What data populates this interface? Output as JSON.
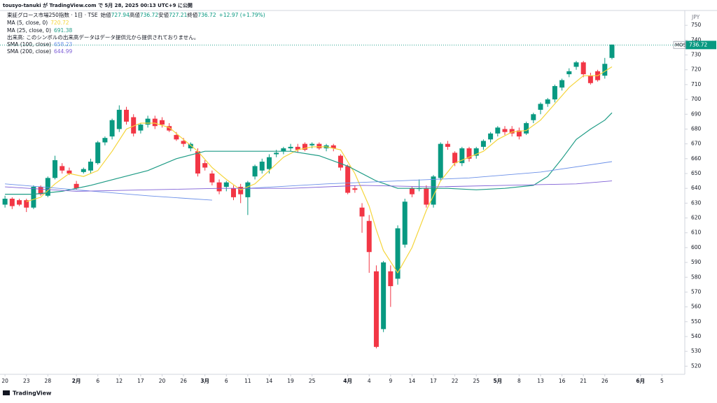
{
  "chart_data": {
    "type": "candlestick",
    "published": "tousyo-tanuki が TradingView.com で 5月 28, 2025 00:13 UTC+9 に公開",
    "legend": {
      "symbol": "東証グロース市場250指数 · 1日 · TSE",
      "open_label": "始値",
      "open": 727.94,
      "high_label": "高値",
      "high": 736.72,
      "low_label": "安値",
      "low": 727.21,
      "close_label": "終値",
      "close": 736.72,
      "change": "+12.97 (+1.79%)"
    },
    "volume_note": "出来高: このシンボルの出来高データはデータ提供元から提供されておりません。",
    "currency": "JPY",
    "price_label": {
      "symbol": "MOS",
      "value": 736.72
    },
    "brand": "TradingView",
    "up_color": "#089981",
    "down_color": "#f23645",
    "open": [
      629,
      633,
      632,
      632,
      627,
      641,
      635,
      647,
      655,
      652,
      643,
      651,
      652,
      657,
      671,
      675,
      680,
      693,
      688,
      679,
      683,
      687,
      686,
      682,
      676,
      672,
      667,
      665,
      657,
      650,
      644,
      641,
      640,
      641,
      634,
      648,
      652,
      653,
      663,
      665,
      667,
      668,
      670,
      669,
      670,
      667,
      669,
      662,
      655,
      640,
      627,
      618,
      584,
      545,
      584,
      579,
      602,
      640,
      640,
      640,
      629,
      647,
      670,
      664,
      657,
      667,
      662,
      668,
      673,
      677,
      680,
      680,
      679,
      677,
      686,
      693,
      697,
      700,
      708,
      717,
      722,
      725,
      716,
      719,
      716,
      728
    ],
    "high": [
      635,
      634,
      633,
      633,
      642,
      642,
      648,
      662,
      657,
      654,
      645,
      654,
      660,
      672,
      675,
      687,
      696,
      695,
      690,
      684,
      689,
      689,
      688,
      684,
      678,
      674,
      671,
      667,
      659,
      652,
      646,
      645,
      642,
      643,
      645,
      656,
      660,
      663,
      666,
      668,
      670,
      670,
      671,
      671,
      671,
      670,
      670,
      663,
      656,
      642,
      630,
      622,
      588,
      591,
      588,
      615,
      633,
      641,
      646,
      642,
      649,
      671,
      672,
      665,
      668,
      668,
      668,
      673,
      678,
      682,
      682,
      682,
      681,
      685,
      691,
      698,
      701,
      710,
      714,
      721,
      726,
      726,
      718,
      720,
      728,
      737
    ],
    "low": [
      627,
      626,
      628,
      624,
      626,
      635,
      634,
      646,
      650,
      649,
      639,
      650,
      650,
      656,
      669,
      673,
      678,
      683,
      675,
      677,
      681,
      680,
      681,
      678,
      672,
      668,
      665,
      648,
      652,
      642,
      636,
      638,
      632,
      630,
      622,
      646,
      650,
      650,
      661,
      663,
      665,
      664,
      665,
      667,
      666,
      665,
      665,
      652,
      636,
      637,
      610,
      583,
      532,
      543,
      560,
      575,
      600,
      634,
      638,
      627,
      627,
      645,
      666,
      655,
      655,
      658,
      660,
      666,
      671,
      675,
      676,
      675,
      673,
      676,
      684,
      690,
      695,
      698,
      706,
      715,
      720,
      715,
      710,
      712,
      714,
      727
    ],
    "close": [
      633,
      628,
      629,
      627,
      641,
      636,
      647,
      659,
      652,
      650,
      640,
      653,
      658,
      671,
      674,
      686,
      693,
      685,
      677,
      683,
      687,
      682,
      683,
      679,
      673,
      670,
      670,
      650,
      654,
      644,
      638,
      644,
      634,
      636,
      644,
      655,
      658,
      661,
      664,
      667,
      668,
      666,
      666,
      670,
      667,
      669,
      667,
      654,
      637,
      639,
      621,
      597,
      533,
      590,
      574,
      613,
      631,
      636,
      640,
      629,
      648,
      670,
      668,
      657,
      667,
      660,
      667,
      672,
      677,
      681,
      678,
      677,
      675,
      684,
      690,
      697,
      700,
      709,
      713,
      719,
      725,
      717,
      711,
      713,
      724,
      737
    ],
    "ylim": [
      514.5,
      760
    ],
    "yticks": [
      520,
      530,
      540,
      550,
      560,
      570,
      580,
      590,
      600,
      610,
      620,
      630,
      640,
      650,
      660,
      670,
      680,
      690,
      700,
      710,
      720,
      730,
      740,
      750
    ],
    "xlim": [
      -0.7,
      95.2
    ],
    "xticks": [
      {
        "value": 0,
        "label": "20"
      },
      {
        "value": 3,
        "label": "23"
      },
      {
        "value": 6,
        "label": "28"
      },
      {
        "value": 10,
        "label": "2月"
      },
      {
        "value": 13,
        "label": "6"
      },
      {
        "value": 16,
        "label": "12"
      },
      {
        "value": 19,
        "label": "17"
      },
      {
        "value": 22,
        "label": "20"
      },
      {
        "value": 25,
        "label": "26"
      },
      {
        "value": 28,
        "label": "3月"
      },
      {
        "value": 31,
        "label": "6"
      },
      {
        "value": 34,
        "label": "11"
      },
      {
        "value": 37,
        "label": "14"
      },
      {
        "value": 40,
        "label": "19"
      },
      {
        "value": 43,
        "label": "25"
      },
      {
        "value": 48,
        "label": "4月"
      },
      {
        "value": 51,
        "label": "4"
      },
      {
        "value": 54,
        "label": "9"
      },
      {
        "value": 57,
        "label": "14"
      },
      {
        "value": 60,
        "label": "17"
      },
      {
        "value": 63,
        "label": "22"
      },
      {
        "value": 66,
        "label": "25"
      },
      {
        "value": 69,
        "label": "5月"
      },
      {
        "value": 72,
        "label": "8"
      },
      {
        "value": 75,
        "label": "13"
      },
      {
        "value": 78,
        "label": "16"
      },
      {
        "value": 81,
        "label": "21"
      },
      {
        "value": 84,
        "label": "26"
      },
      {
        "value": 89,
        "label": "6月"
      },
      {
        "value": 92,
        "label": "5"
      }
    ],
    "series": [
      {
        "name": "MA (5, close, 0)",
        "last": 720.72,
        "color": "#f5d53b",
        "x": [
          3,
          5,
          7,
          9,
          11,
          13,
          15,
          17,
          19,
          21,
          23,
          25,
          27,
          29,
          31,
          33,
          35,
          37,
          39,
          41,
          43,
          45,
          47,
          49,
          51,
          52,
          53,
          55,
          57,
          59,
          61,
          63,
          65,
          67,
          69,
          71,
          73,
          75,
          77,
          79,
          81,
          83,
          85
        ],
        "values": [
          631,
          634,
          643,
          650,
          648,
          652,
          665,
          680,
          684,
          684,
          681,
          673,
          665,
          654,
          646,
          639,
          643,
          652,
          661,
          666,
          668,
          668,
          666,
          650,
          628,
          612,
          598,
          583,
          600,
          625,
          645,
          657,
          661,
          665,
          673,
          678,
          679,
          686,
          697,
          708,
          716,
          716,
          722
        ]
      },
      {
        "name": "MA (25, close, 0)",
        "last": 691.38,
        "color": "#1f9c86",
        "x": [
          0,
          4,
          8,
          12,
          16,
          20,
          24,
          28,
          32,
          36,
          40,
          44,
          48,
          52,
          55,
          58,
          62,
          66,
          70,
          74,
          76,
          78,
          80,
          82,
          84,
          85
        ],
        "values": [
          636,
          636,
          638,
          642,
          647,
          652,
          660,
          665,
          665,
          665,
          665,
          662,
          655,
          645,
          640,
          640,
          640,
          639,
          640,
          642,
          648,
          660,
          673,
          680,
          686,
          691
        ]
      },
      {
        "name": "SMA (100, close)",
        "last": 658.23,
        "color": "#6a8fe8",
        "x": [
          0,
          10,
          20,
          29,
          null,
          34,
          45,
          55,
          65,
          75,
          85
        ],
        "values": [
          643,
          639,
          635,
          632,
          null,
          640,
          643,
          645,
          647,
          651,
          658
        ]
      },
      {
        "name": "SMA (200, close)",
        "last": 644.99,
        "color": "#7e5fd6",
        "x": [
          0,
          10,
          20,
          30,
          40,
          50,
          60,
          70,
          80,
          85
        ],
        "values": [
          641,
          638,
          639,
          640,
          640,
          642,
          641,
          642,
          643,
          645
        ]
      }
    ]
  }
}
